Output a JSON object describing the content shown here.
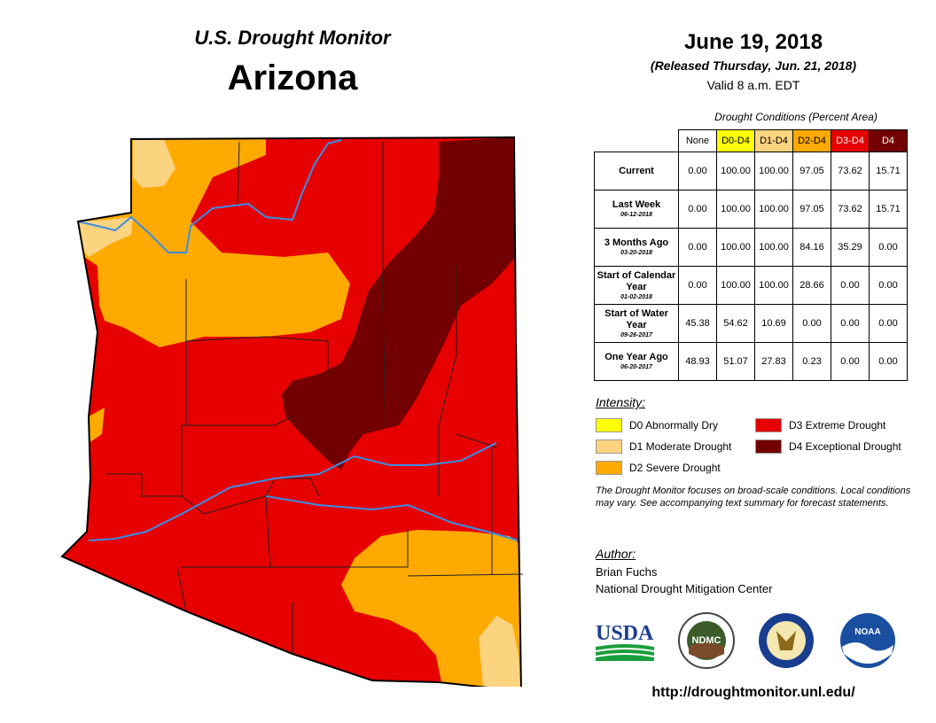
{
  "header": {
    "subtitle": "U.S. Drought Monitor",
    "state": "Arizona",
    "date": "June 19, 2018",
    "released": "(Released Thursday, Jun. 21, 2018)",
    "valid": "Valid 8 a.m. EDT"
  },
  "table": {
    "caption": "Drought Conditions (Percent Area)",
    "columns": [
      {
        "label": "None",
        "color": "#ffffff"
      },
      {
        "label": "D0-D4",
        "color": "#ffff00"
      },
      {
        "label": "D1-D4",
        "color": "#fcd37f"
      },
      {
        "label": "D2-D4",
        "color": "#ffaa00"
      },
      {
        "label": "D3-D4",
        "color": "#e60000"
      },
      {
        "label": "D4",
        "color": "#730000"
      }
    ],
    "rows": [
      {
        "label": "Current",
        "date": "",
        "values": [
          "0.00",
          "100.00",
          "100.00",
          "97.05",
          "73.62",
          "15.71"
        ]
      },
      {
        "label": "Last Week",
        "date": "06-12-2018",
        "values": [
          "0.00",
          "100.00",
          "100.00",
          "97.05",
          "73.62",
          "15.71"
        ]
      },
      {
        "label": "3 Months Ago",
        "date": "03-20-2018",
        "values": [
          "0.00",
          "100.00",
          "100.00",
          "84.16",
          "35.29",
          "0.00"
        ]
      },
      {
        "label": "Start of Calendar Year",
        "date": "01-02-2018",
        "values": [
          "0.00",
          "100.00",
          "100.00",
          "28.66",
          "0.00",
          "0.00"
        ]
      },
      {
        "label": "Start of Water Year",
        "date": "09-26-2017",
        "values": [
          "45.38",
          "54.62",
          "10.69",
          "0.00",
          "0.00",
          "0.00"
        ]
      },
      {
        "label": "One Year Ago",
        "date": "06-20-2017",
        "values": [
          "48.93",
          "51.07",
          "27.83",
          "0.23",
          "0.00",
          "0.00"
        ]
      }
    ]
  },
  "legend": {
    "title": "Intensity:",
    "items": [
      {
        "label": "D0 Abnormally Dry",
        "color": "#ffff00"
      },
      {
        "label": "D1 Moderate Drought",
        "color": "#fcd37f"
      },
      {
        "label": "D2 Severe Drought",
        "color": "#ffaa00"
      },
      {
        "label": "D3 Extreme Drought",
        "color": "#e60000"
      },
      {
        "label": "D4 Exceptional Drought",
        "color": "#730000"
      }
    ]
  },
  "statement": "The Drought Monitor focuses on broad-scale conditions. Local conditions may vary. See accompanying text summary for forecast statements.",
  "author": {
    "title": "Author:",
    "name": "Brian Fuchs",
    "org": "National Drought Mitigation Center"
  },
  "logos": {
    "usda": "USDA",
    "ndmc": "NDMC",
    "noaa": "NOAA"
  },
  "url": "http://droughtmonitor.unl.edu/",
  "colors": {
    "D1": "#fcd37f",
    "D2": "#ffaa00",
    "D3": "#e60000",
    "D4": "#730000",
    "water": "#3a8ee6"
  }
}
